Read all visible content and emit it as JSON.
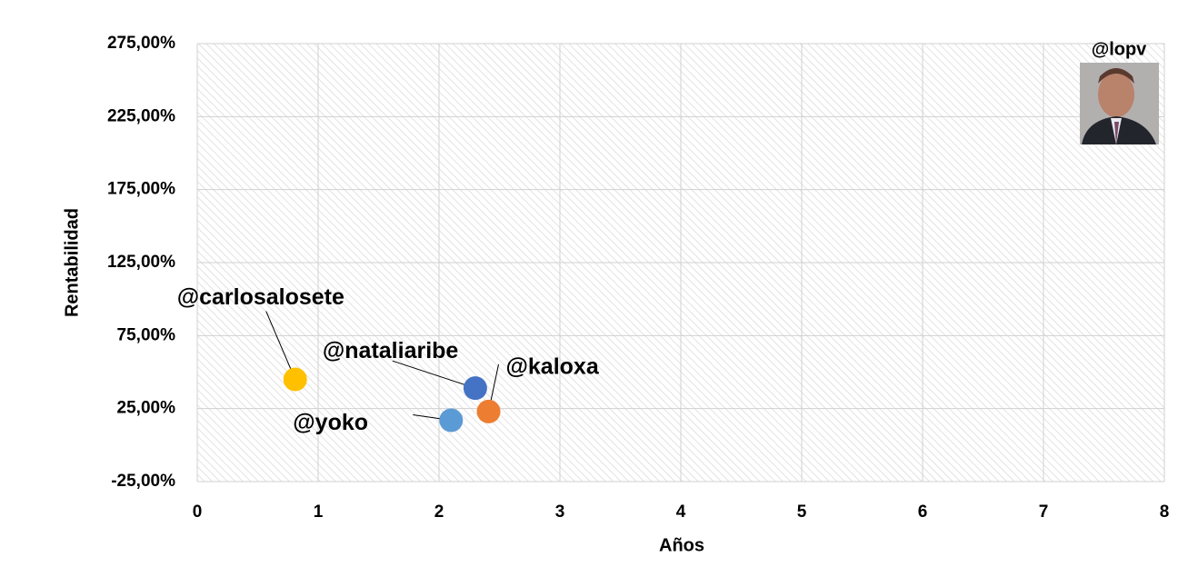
{
  "chart_data": {
    "type": "scatter",
    "x_label": "Años",
    "y_label": "Rentabilidad",
    "annotation": "@lopv",
    "xlim": [
      0,
      8
    ],
    "xticks": [
      0,
      1,
      2,
      3,
      4,
      5,
      6,
      7,
      8
    ],
    "ylim": [
      -25,
      275
    ],
    "yticks": [
      {
        "value": -25,
        "label": "-25,00%"
      },
      {
        "value": 25,
        "label": "25,00%"
      },
      {
        "value": 75,
        "label": "75,00%"
      },
      {
        "value": 125,
        "label": "125,00%"
      },
      {
        "value": 175,
        "label": "175,00%"
      },
      {
        "value": 225,
        "label": "225,00%"
      },
      {
        "value": 275,
        "label": "275,00%"
      }
    ],
    "grid": true,
    "series": [
      {
        "name": "@carlosalosete",
        "color": "#FFC000",
        "x": [
          0.81
        ],
        "values": [
          45
        ]
      },
      {
        "name": "@nataliaribe",
        "color": "#4472C4",
        "x": [
          2.3
        ],
        "values": [
          39
        ]
      },
      {
        "name": "@kaloxa",
        "color": "#ED7D31",
        "x": [
          2.41
        ],
        "values": [
          23
        ]
      },
      {
        "name": "@yoko",
        "color": "#5B9BD5",
        "x": [
          2.1
        ],
        "values": [
          17
        ]
      }
    ]
  }
}
